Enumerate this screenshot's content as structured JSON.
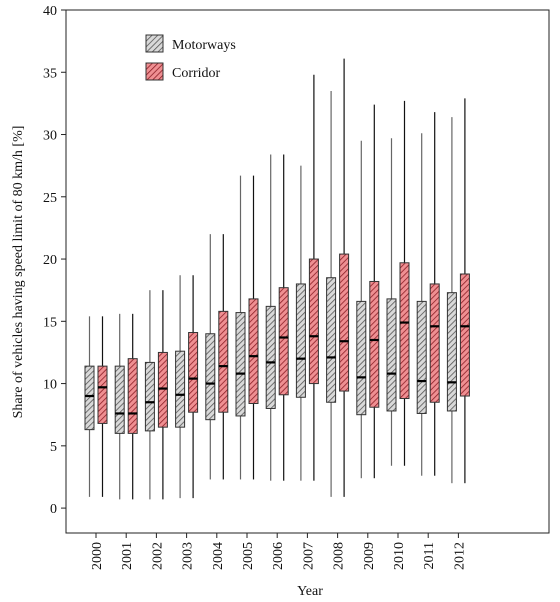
{
  "chart_data": {
    "type": "boxplot",
    "xlabel": "Year",
    "ylabel": "Share of vehicles having speed limit of 80 km/h [%]",
    "ylim": [
      -2,
      40
    ],
    "yticks": [
      0,
      5,
      10,
      15,
      20,
      25,
      30,
      35,
      40
    ],
    "categories": [
      "2000",
      "2001",
      "2002",
      "2003",
      "2004",
      "2005",
      "2006",
      "2007",
      "2008",
      "2009",
      "2010",
      "2011",
      "2012"
    ],
    "legend": {
      "placement": "top-left"
    },
    "series": [
      {
        "name": "Motorways",
        "fill": "#d9d9d9",
        "hatch": "#555555",
        "whisker": "#666666",
        "min": [
          0.9,
          0.7,
          0.7,
          0.8,
          2.3,
          2.3,
          2.2,
          2.2,
          0.9,
          2.4,
          3.4,
          2.6,
          2.0
        ],
        "q1": [
          6.3,
          6.0,
          6.2,
          6.5,
          7.1,
          7.4,
          8.0,
          8.9,
          8.5,
          7.5,
          7.8,
          7.6,
          7.8
        ],
        "median": [
          9.0,
          7.6,
          8.5,
          9.1,
          10.0,
          10.8,
          11.7,
          12.0,
          12.1,
          10.5,
          10.8,
          10.2,
          10.1
        ],
        "q3": [
          11.4,
          11.4,
          11.7,
          12.6,
          14.0,
          15.7,
          16.2,
          18.0,
          18.5,
          16.6,
          16.8,
          16.6,
          17.3
        ],
        "max": [
          15.4,
          15.6,
          17.5,
          18.7,
          22.0,
          26.7,
          28.4,
          27.5,
          33.5,
          29.5,
          29.7,
          30.1,
          31.4
        ]
      },
      {
        "name": "Corridor",
        "fill": "#ef8f92",
        "hatch": "#8b1c24",
        "whisker": "#111111",
        "min": [
          0.9,
          0.7,
          0.7,
          0.8,
          2.3,
          2.3,
          2.2,
          2.2,
          0.9,
          2.4,
          3.4,
          2.6,
          2.0
        ],
        "q1": [
          6.8,
          6.0,
          6.5,
          7.7,
          7.7,
          8.4,
          9.1,
          10.0,
          9.4,
          8.1,
          8.8,
          8.5,
          9.0
        ],
        "median": [
          9.7,
          7.6,
          9.6,
          10.4,
          11.4,
          12.2,
          13.7,
          13.8,
          13.4,
          13.5,
          14.9,
          14.6,
          14.6
        ],
        "q3": [
          11.4,
          12.0,
          12.5,
          14.1,
          15.8,
          16.8,
          17.7,
          20.0,
          20.4,
          18.2,
          19.7,
          18.0,
          18.8
        ],
        "max": [
          15.4,
          15.6,
          17.5,
          18.7,
          22.0,
          26.7,
          28.4,
          34.8,
          36.1,
          32.4,
          32.7,
          31.8,
          32.9
        ]
      }
    ]
  }
}
